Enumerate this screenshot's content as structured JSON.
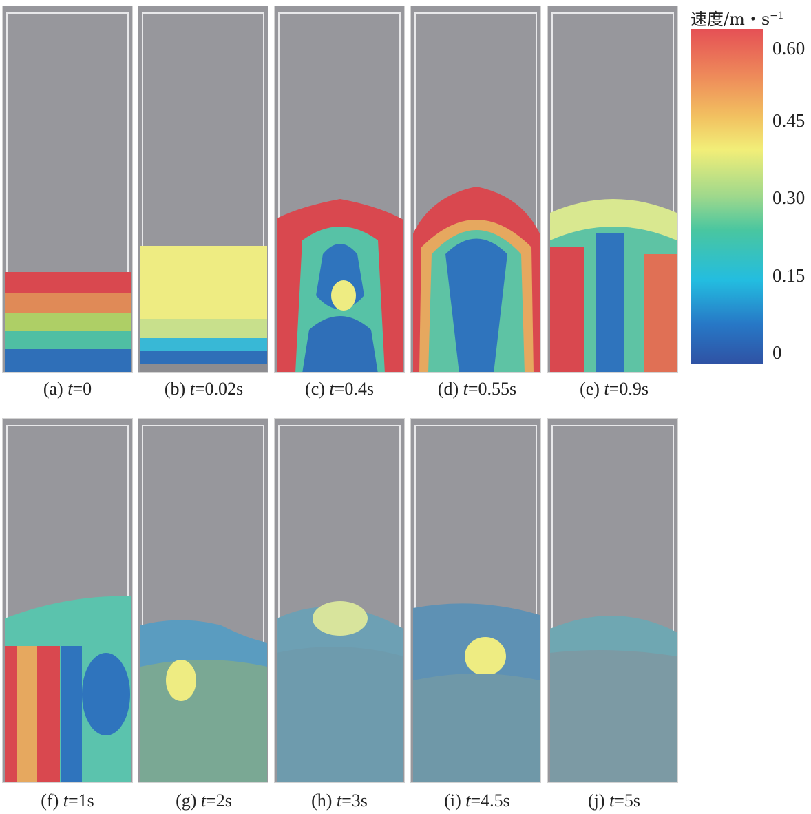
{
  "legend": {
    "title": "速度/m・s",
    "unit_exponent": "−1",
    "ticks": [
      "0.60",
      "0.45",
      "0.30",
      "0.15",
      "0"
    ],
    "colors": [
      "#e55055",
      "#f2c060",
      "#f2ee78",
      "#49c6a0",
      "#23bde0",
      "#2f52a4"
    ]
  },
  "panels": [
    {
      "label": "(a)",
      "var": "t",
      "value": "=0"
    },
    {
      "label": "(b)",
      "var": "t",
      "value": "=0.02s"
    },
    {
      "label": "(c)",
      "var": "t",
      "value": "=0.4s"
    },
    {
      "label": "(d)",
      "var": "t",
      "value": "=0.55s"
    },
    {
      "label": "(e)",
      "var": "t",
      "value": "=0.9s"
    },
    {
      "label": "(f)",
      "var": "t",
      "value": "=1s"
    },
    {
      "label": "(g)",
      "var": "t",
      "value": "=2s"
    },
    {
      "label": "(h)",
      "var": "t",
      "value": "=3s"
    },
    {
      "label": "(i)",
      "var": "t",
      "value": "=4.5s"
    },
    {
      "label": "(j)",
      "var": "t",
      "value": "=5s"
    }
  ]
}
